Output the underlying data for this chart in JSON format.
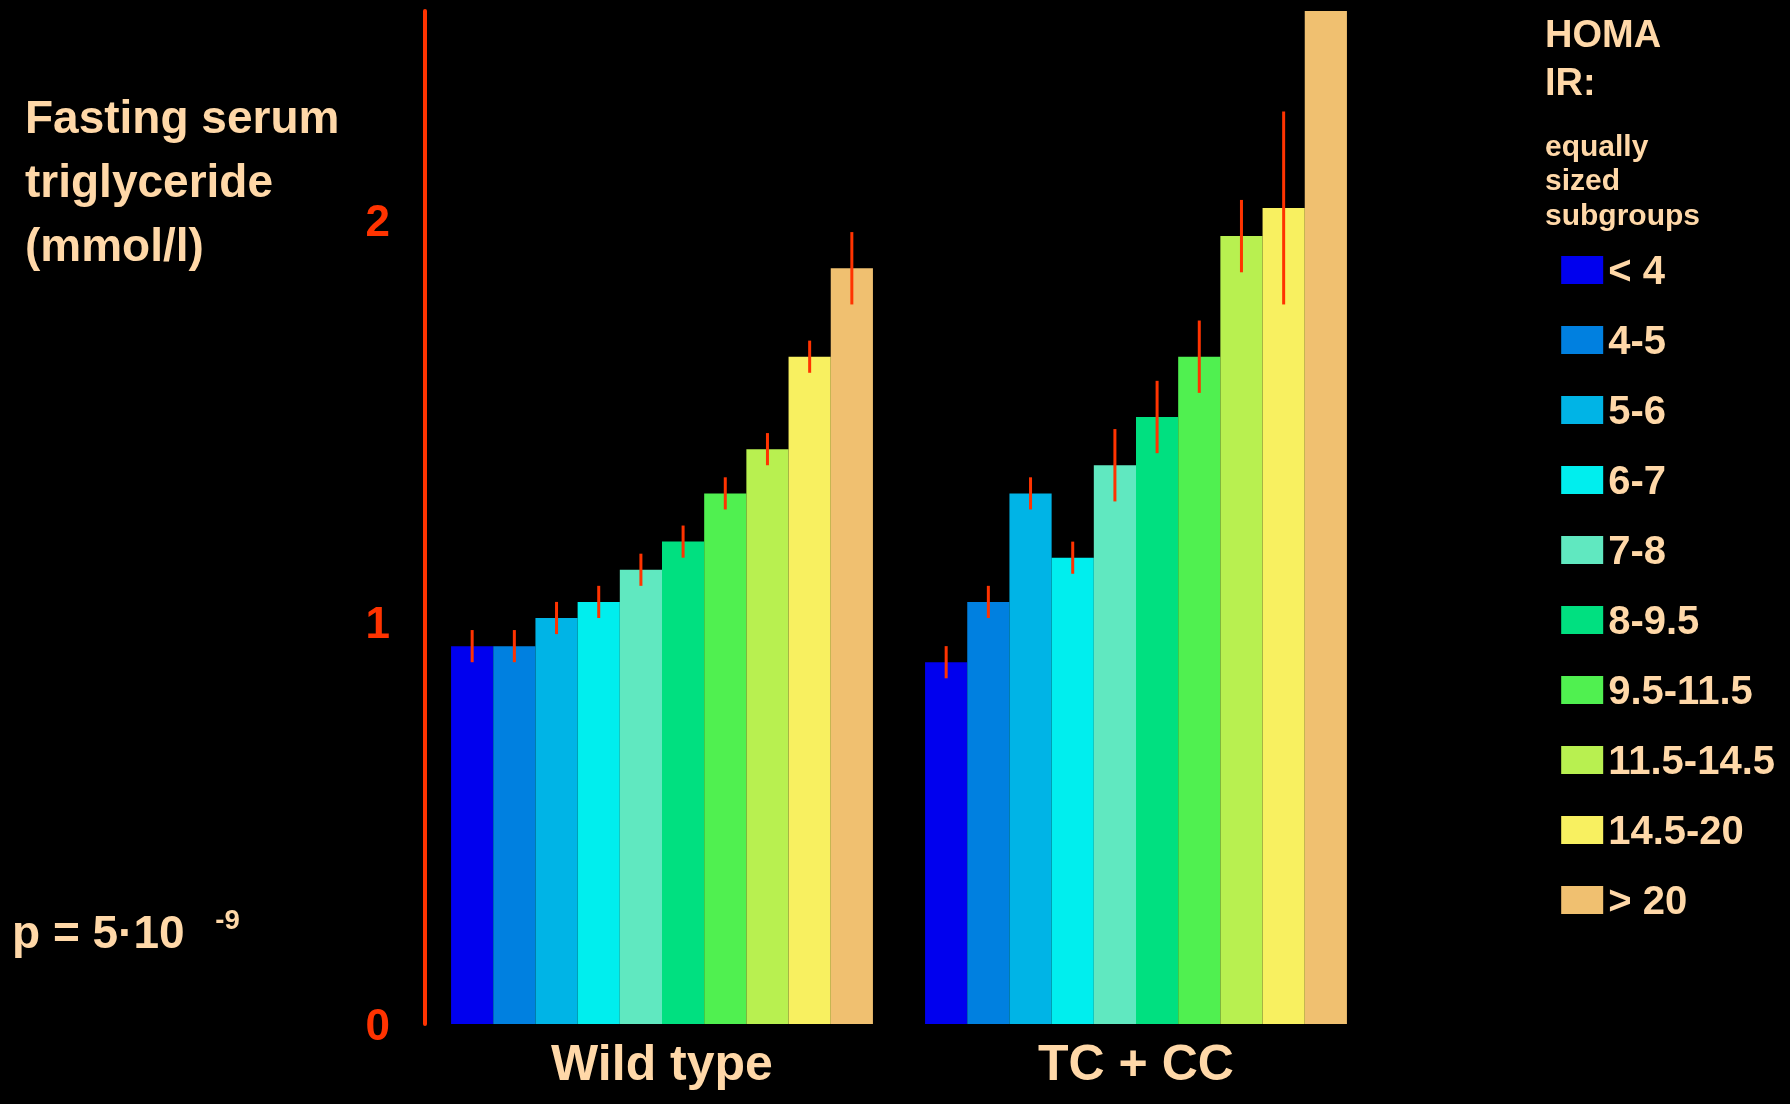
{
  "chart_data": {
    "type": "bar",
    "ylabel": "Fasting serum triglyceride (mmol/l)",
    "legend_title": "HOMA IR:",
    "annotations": [
      "equally sized subgroups",
      "p = 5·10$^{-9}$"
    ],
    "categories": [
      "Wild type",
      "TC + CC"
    ],
    "ylim": [
      0,
      2.52
    ],
    "yticks": [
      0,
      1,
      2
    ],
    "grid": false,
    "legend": "right",
    "series": [
      {
        "name": "< 4",
        "color": "#0000ee",
        "values": [
          0.94,
          0.9
        ],
        "errors": [
          0.04,
          0.04
        ]
      },
      {
        "name": "4-5",
        "color": "#0080e0",
        "values": [
          0.94,
          1.05
        ],
        "errors": [
          0.04,
          0.04
        ]
      },
      {
        "name": "5-6",
        "color": "#00b4e6",
        "values": [
          1.01,
          1.32
        ],
        "errors": [
          0.04,
          0.04
        ]
      },
      {
        "name": "6-7",
        "color": "#00eeee",
        "values": [
          1.05,
          1.16
        ],
        "errors": [
          0.04,
          0.04
        ]
      },
      {
        "name": "7-8",
        "color": "#60e8c0",
        "values": [
          1.13,
          1.39
        ],
        "errors": [
          0.04,
          0.09
        ]
      },
      {
        "name": "8-9.5",
        "color": "#00e080",
        "values": [
          1.2,
          1.51
        ],
        "errors": [
          0.04,
          0.09
        ]
      },
      {
        "name": "9.5-11.5",
        "color": "#50f050",
        "values": [
          1.32,
          1.66
        ],
        "errors": [
          0.04,
          0.09
        ]
      },
      {
        "name": "11.5-14.5",
        "color": "#b8f050",
        "values": [
          1.43,
          1.96
        ],
        "errors": [
          0.04,
          0.09
        ]
      },
      {
        "name": "14.5-20",
        "color": "#f8f060",
        "values": [
          1.66,
          2.03
        ],
        "errors": [
          0.04,
          0.24
        ]
      },
      {
        "name": "> 20",
        "color": "#f0c070",
        "values": [
          1.88,
          2.52
        ],
        "errors": [
          0.09,
          null
        ]
      }
    ]
  }
}
